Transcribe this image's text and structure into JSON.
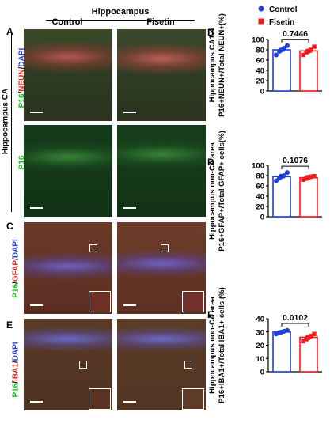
{
  "figure": {
    "header_title": "Hippocampus",
    "col_labels": [
      "Control",
      "Fisetin"
    ],
    "side_label": "Hippocampus CA",
    "panel_letters": [
      "A",
      "B",
      "C",
      "D",
      "E",
      "F"
    ],
    "row_labels": [
      {
        "p16": "P16",
        "sep1": "/",
        "m2": "NEUN",
        "sep2": "/",
        "dapi": "DAPI"
      },
      {
        "p16": "P16"
      },
      {
        "p16": "P16",
        "sep1": "/",
        "m2": "GFAP",
        "sep2": "/",
        "dapi": "DAPI"
      },
      {
        "p16": "P16",
        "sep1": "/",
        "m2": "IBA1",
        "sep2": "/",
        "dapi": "DAPI"
      }
    ],
    "colors": {
      "control": "#1f3fd6",
      "fisetin": "#ee1c1c",
      "p16": "#1dbf1d",
      "marker": "#e0281e",
      "dapi": "#2b3fd8"
    }
  },
  "legend": {
    "control": "Control",
    "fisetin": "Fisetin"
  },
  "chart_data": [
    {
      "type": "bar",
      "panel": "B",
      "categories": [
        "Control",
        "Fisetin"
      ],
      "values": [
        80,
        78
      ],
      "points": [
        [
          70,
          77,
          80,
          83,
          88,
          79
        ],
        [
          70,
          75,
          78,
          80,
          86,
          77
        ]
      ],
      "ylabel_line1": "Hippocampus CA1-4",
      "ylabel_line2": "P16+NEUN+/Total NEUN+(%)",
      "ylim": [
        0,
        100
      ],
      "yticks": [
        0,
        20,
        40,
        60,
        80,
        100
      ],
      "p_value": "0.7446"
    },
    {
      "type": "bar",
      "panel": "D",
      "categories": [
        "Control",
        "Fisetin"
      ],
      "values": [
        78,
        76
      ],
      "points": [
        [
          70,
          75,
          78,
          80,
          86,
          79
        ],
        [
          72,
          74,
          76,
          78,
          79,
          77
        ]
      ],
      "ylabel_line1": "Hippocampus non-CA area",
      "ylabel_line2": "P16+GFAP+/Total GFAP+ cells(%)",
      "ylim": [
        0,
        100
      ],
      "yticks": [
        0,
        20,
        40,
        60,
        80,
        100
      ],
      "p_value": "0.1076"
    },
    {
      "type": "bar",
      "panel": "F",
      "categories": [
        "Control",
        "Fisetin"
      ],
      "values": [
        30,
        26
      ],
      "points": [
        [
          28.5,
          29.5,
          30,
          30.5,
          31.2,
          29.8
        ],
        [
          23,
          24.5,
          26,
          27,
          28.5,
          25.5
        ]
      ],
      "ylabel_line1": "Hippocampus non-CA area",
      "ylabel_line2": "P16+IBA1+/Total IBA1+ cells (%)",
      "ylim": [
        0,
        40
      ],
      "yticks": [
        0,
        10,
        20,
        30,
        40
      ],
      "p_value": "0.0102"
    }
  ]
}
